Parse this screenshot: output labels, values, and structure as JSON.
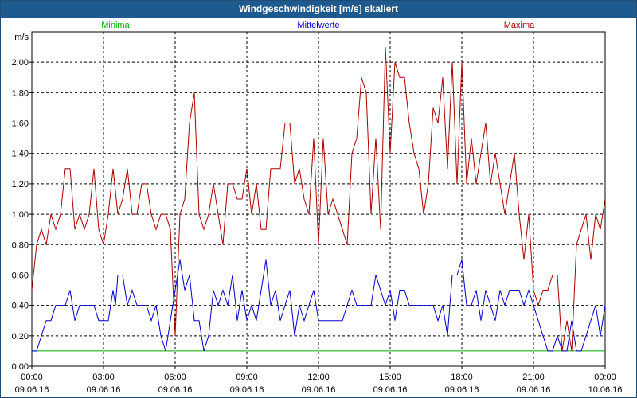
{
  "window": {
    "title": "Windgeschwindigkeit [m/s] skaliert"
  },
  "chart_data": {
    "type": "line",
    "title": "Windgeschwindigkeit [m/s] skaliert",
    "ylabel": "m/s",
    "xlabel": "",
    "ylim": [
      0,
      2.2
    ],
    "xlim": [
      0,
      24
    ],
    "grid": true,
    "legend_placement": "top",
    "y_ticks": [
      "0,00",
      "0,20",
      "0,40",
      "0,60",
      "0,80",
      "1,00",
      "1,20",
      "1,40",
      "1,60",
      "1,80",
      "2,00"
    ],
    "x_ticks": [
      {
        "time": "00:00",
        "date": "09.06.16"
      },
      {
        "time": "03:00",
        "date": "09.06.16"
      },
      {
        "time": "06:00",
        "date": "09.06.16"
      },
      {
        "time": "09:00",
        "date": "09.06.16"
      },
      {
        "time": "12:00",
        "date": "09.06.16"
      },
      {
        "time": "15:00",
        "date": "09.06.16"
      },
      {
        "time": "18:00",
        "date": "09.06.16"
      },
      {
        "time": "21:00",
        "date": "09.06.16"
      },
      {
        "time": "00:00",
        "date": "10.06.16"
      }
    ],
    "series": [
      {
        "name": "Minima",
        "color": "#00aa00",
        "points": [
          [
            0,
            0.1
          ],
          [
            24,
            0.1
          ]
        ]
      },
      {
        "name": "Mittelwerte",
        "color": "#0000cc",
        "points": [
          [
            0,
            0.1
          ],
          [
            0.2,
            0.1
          ],
          [
            0.4,
            0.2
          ],
          [
            0.6,
            0.3
          ],
          [
            0.8,
            0.3
          ],
          [
            1,
            0.4
          ],
          [
            1.2,
            0.4
          ],
          [
            1.4,
            0.4
          ],
          [
            1.6,
            0.5
          ],
          [
            1.8,
            0.3
          ],
          [
            2,
            0.4
          ],
          [
            2.2,
            0.4
          ],
          [
            2.4,
            0.4
          ],
          [
            2.6,
            0.4
          ],
          [
            2.8,
            0.3
          ],
          [
            3,
            0.3
          ],
          [
            3.2,
            0.3
          ],
          [
            3.4,
            0.5
          ],
          [
            3.5,
            0.4
          ],
          [
            3.6,
            0.6
          ],
          [
            3.8,
            0.6
          ],
          [
            4,
            0.4
          ],
          [
            4.2,
            0.5
          ],
          [
            4.4,
            0.4
          ],
          [
            4.6,
            0.4
          ],
          [
            4.8,
            0.4
          ],
          [
            5,
            0.3
          ],
          [
            5.2,
            0.4
          ],
          [
            5.4,
            0.2
          ],
          [
            5.6,
            0.1
          ],
          [
            5.8,
            0.3
          ],
          [
            6,
            0.5
          ],
          [
            6.2,
            0.7
          ],
          [
            6.4,
            0.5
          ],
          [
            6.6,
            0.6
          ],
          [
            6.8,
            0.3
          ],
          [
            7,
            0.3
          ],
          [
            7.2,
            0.1
          ],
          [
            7.4,
            0.2
          ],
          [
            7.6,
            0.5
          ],
          [
            7.8,
            0.4
          ],
          [
            8,
            0.5
          ],
          [
            8.2,
            0.4
          ],
          [
            8.4,
            0.6
          ],
          [
            8.6,
            0.3
          ],
          [
            8.8,
            0.5
          ],
          [
            9,
            0.3
          ],
          [
            9.2,
            0.4
          ],
          [
            9.4,
            0.3
          ],
          [
            9.6,
            0.5
          ],
          [
            9.8,
            0.7
          ],
          [
            10,
            0.4
          ],
          [
            10.2,
            0.5
          ],
          [
            10.4,
            0.3
          ],
          [
            10.6,
            0.4
          ],
          [
            10.8,
            0.5
          ],
          [
            11,
            0.2
          ],
          [
            11.2,
            0.4
          ],
          [
            11.4,
            0.3
          ],
          [
            11.6,
            0.4
          ],
          [
            11.8,
            0.5
          ],
          [
            12,
            0.3
          ],
          [
            12.2,
            0.3
          ],
          [
            12.4,
            0.3
          ],
          [
            12.6,
            0.3
          ],
          [
            12.8,
            0.3
          ],
          [
            13,
            0.3
          ],
          [
            13.2,
            0.4
          ],
          [
            13.4,
            0.5
          ],
          [
            13.6,
            0.4
          ],
          [
            13.8,
            0.4
          ],
          [
            14,
            0.4
          ],
          [
            14.2,
            0.4
          ],
          [
            14.4,
            0.6
          ],
          [
            14.6,
            0.5
          ],
          [
            14.8,
            0.4
          ],
          [
            15,
            0.5
          ],
          [
            15.2,
            0.3
          ],
          [
            15.4,
            0.5
          ],
          [
            15.6,
            0.5
          ],
          [
            15.8,
            0.4
          ],
          [
            16,
            0.4
          ],
          [
            16.2,
            0.4
          ],
          [
            16.4,
            0.4
          ],
          [
            16.6,
            0.4
          ],
          [
            16.8,
            0.4
          ],
          [
            17,
            0.3
          ],
          [
            17.2,
            0.4
          ],
          [
            17.4,
            0.2
          ],
          [
            17.6,
            0.6
          ],
          [
            17.8,
            0.6
          ],
          [
            18,
            0.7
          ],
          [
            18.2,
            0.4
          ],
          [
            18.4,
            0.4
          ],
          [
            18.6,
            0.5
          ],
          [
            18.8,
            0.3
          ],
          [
            19,
            0.5
          ],
          [
            19.2,
            0.4
          ],
          [
            19.4,
            0.3
          ],
          [
            19.6,
            0.5
          ],
          [
            19.8,
            0.4
          ],
          [
            20,
            0.5
          ],
          [
            20.2,
            0.5
          ],
          [
            20.4,
            0.5
          ],
          [
            20.6,
            0.4
          ],
          [
            20.8,
            0.5
          ],
          [
            21,
            0.4
          ],
          [
            21.2,
            0.3
          ],
          [
            21.4,
            0.2
          ],
          [
            21.6,
            0.1
          ],
          [
            21.8,
            0.1
          ],
          [
            22,
            0.2
          ],
          [
            22.2,
            0.1
          ],
          [
            22.4,
            0.1
          ],
          [
            22.6,
            0.3
          ],
          [
            22.8,
            0.1
          ],
          [
            23,
            0.1
          ],
          [
            23.2,
            0.2
          ],
          [
            23.4,
            0.3
          ],
          [
            23.6,
            0.4
          ],
          [
            23.8,
            0.2
          ],
          [
            24,
            0.4
          ]
        ]
      },
      {
        "name": "Maxima",
        "color": "#aa0000",
        "points": [
          [
            0,
            0.5
          ],
          [
            0.2,
            0.8
          ],
          [
            0.4,
            0.9
          ],
          [
            0.6,
            0.8
          ],
          [
            0.8,
            1.0
          ],
          [
            1,
            0.9
          ],
          [
            1.2,
            1.0
          ],
          [
            1.4,
            1.3
          ],
          [
            1.6,
            1.3
          ],
          [
            1.8,
            0.9
          ],
          [
            2,
            1.0
          ],
          [
            2.2,
            0.9
          ],
          [
            2.4,
            1.0
          ],
          [
            2.6,
            1.3
          ],
          [
            2.8,
            0.9
          ],
          [
            3,
            0.8
          ],
          [
            3.2,
            1.0
          ],
          [
            3.4,
            1.3
          ],
          [
            3.6,
            1.0
          ],
          [
            3.8,
            1.1
          ],
          [
            4,
            1.3
          ],
          [
            4.2,
            1.0
          ],
          [
            4.4,
            1.0
          ],
          [
            4.6,
            1.2
          ],
          [
            4.8,
            1.2
          ],
          [
            5,
            1.0
          ],
          [
            5.2,
            0.9
          ],
          [
            5.4,
            1.0
          ],
          [
            5.6,
            1.0
          ],
          [
            5.8,
            0.9
          ],
          [
            6,
            0.2
          ],
          [
            6.2,
            1.0
          ],
          [
            6.4,
            1.1
          ],
          [
            6.6,
            1.6
          ],
          [
            6.8,
            1.8
          ],
          [
            7,
            1.0
          ],
          [
            7.2,
            0.9
          ],
          [
            7.4,
            1.0
          ],
          [
            7.6,
            1.2
          ],
          [
            7.8,
            1.0
          ],
          [
            8,
            0.8
          ],
          [
            8.2,
            1.2
          ],
          [
            8.4,
            1.2
          ],
          [
            8.6,
            1.1
          ],
          [
            8.8,
            1.1
          ],
          [
            9,
            1.3
          ],
          [
            9.2,
            1.0
          ],
          [
            9.4,
            1.2
          ],
          [
            9.6,
            0.9
          ],
          [
            9.8,
            0.9
          ],
          [
            10,
            1.3
          ],
          [
            10.2,
            1.3
          ],
          [
            10.4,
            1.3
          ],
          [
            10.6,
            1.6
          ],
          [
            10.8,
            1.6
          ],
          [
            11,
            1.2
          ],
          [
            11.2,
            1.3
          ],
          [
            11.4,
            1.1
          ],
          [
            11.6,
            1.0
          ],
          [
            11.8,
            1.5
          ],
          [
            12,
            0.8
          ],
          [
            12.2,
            1.5
          ],
          [
            12.4,
            1.0
          ],
          [
            12.6,
            1.1
          ],
          [
            12.8,
            1.0
          ],
          [
            13,
            0.9
          ],
          [
            13.2,
            0.8
          ],
          [
            13.4,
            1.4
          ],
          [
            13.6,
            1.5
          ],
          [
            13.8,
            1.9
          ],
          [
            14,
            1.8
          ],
          [
            14.2,
            1.0
          ],
          [
            14.4,
            1.5
          ],
          [
            14.6,
            0.9
          ],
          [
            14.8,
            2.1
          ],
          [
            15,
            1.4
          ],
          [
            15.2,
            2.0
          ],
          [
            15.4,
            1.9
          ],
          [
            15.6,
            1.9
          ],
          [
            15.8,
            1.6
          ],
          [
            16,
            1.4
          ],
          [
            16.2,
            1.3
          ],
          [
            16.4,
            1.0
          ],
          [
            16.6,
            1.2
          ],
          [
            16.8,
            1.7
          ],
          [
            17,
            1.6
          ],
          [
            17.2,
            1.9
          ],
          [
            17.4,
            1.3
          ],
          [
            17.6,
            2.0
          ],
          [
            17.8,
            1.2
          ],
          [
            18,
            2.0
          ],
          [
            18.2,
            1.2
          ],
          [
            18.4,
            1.5
          ],
          [
            18.6,
            1.2
          ],
          [
            18.8,
            1.4
          ],
          [
            19,
            1.6
          ],
          [
            19.2,
            1.2
          ],
          [
            19.4,
            1.4
          ],
          [
            19.6,
            1.2
          ],
          [
            19.8,
            1.0
          ],
          [
            20,
            1.2
          ],
          [
            20.2,
            1.4
          ],
          [
            20.4,
            1.0
          ],
          [
            20.6,
            0.7
          ],
          [
            20.8,
            1.0
          ],
          [
            21,
            0.5
          ],
          [
            21.2,
            0.4
          ],
          [
            21.4,
            0.5
          ],
          [
            21.6,
            0.5
          ],
          [
            21.8,
            0.6
          ],
          [
            22,
            0.6
          ],
          [
            22.2,
            0.1
          ],
          [
            22.4,
            0.3
          ],
          [
            22.6,
            0.1
          ],
          [
            22.8,
            0.8
          ],
          [
            23,
            0.9
          ],
          [
            23.2,
            1.0
          ],
          [
            23.4,
            0.7
          ],
          [
            23.6,
            1.0
          ],
          [
            23.8,
            0.9
          ],
          [
            24,
            1.1
          ]
        ]
      }
    ]
  }
}
